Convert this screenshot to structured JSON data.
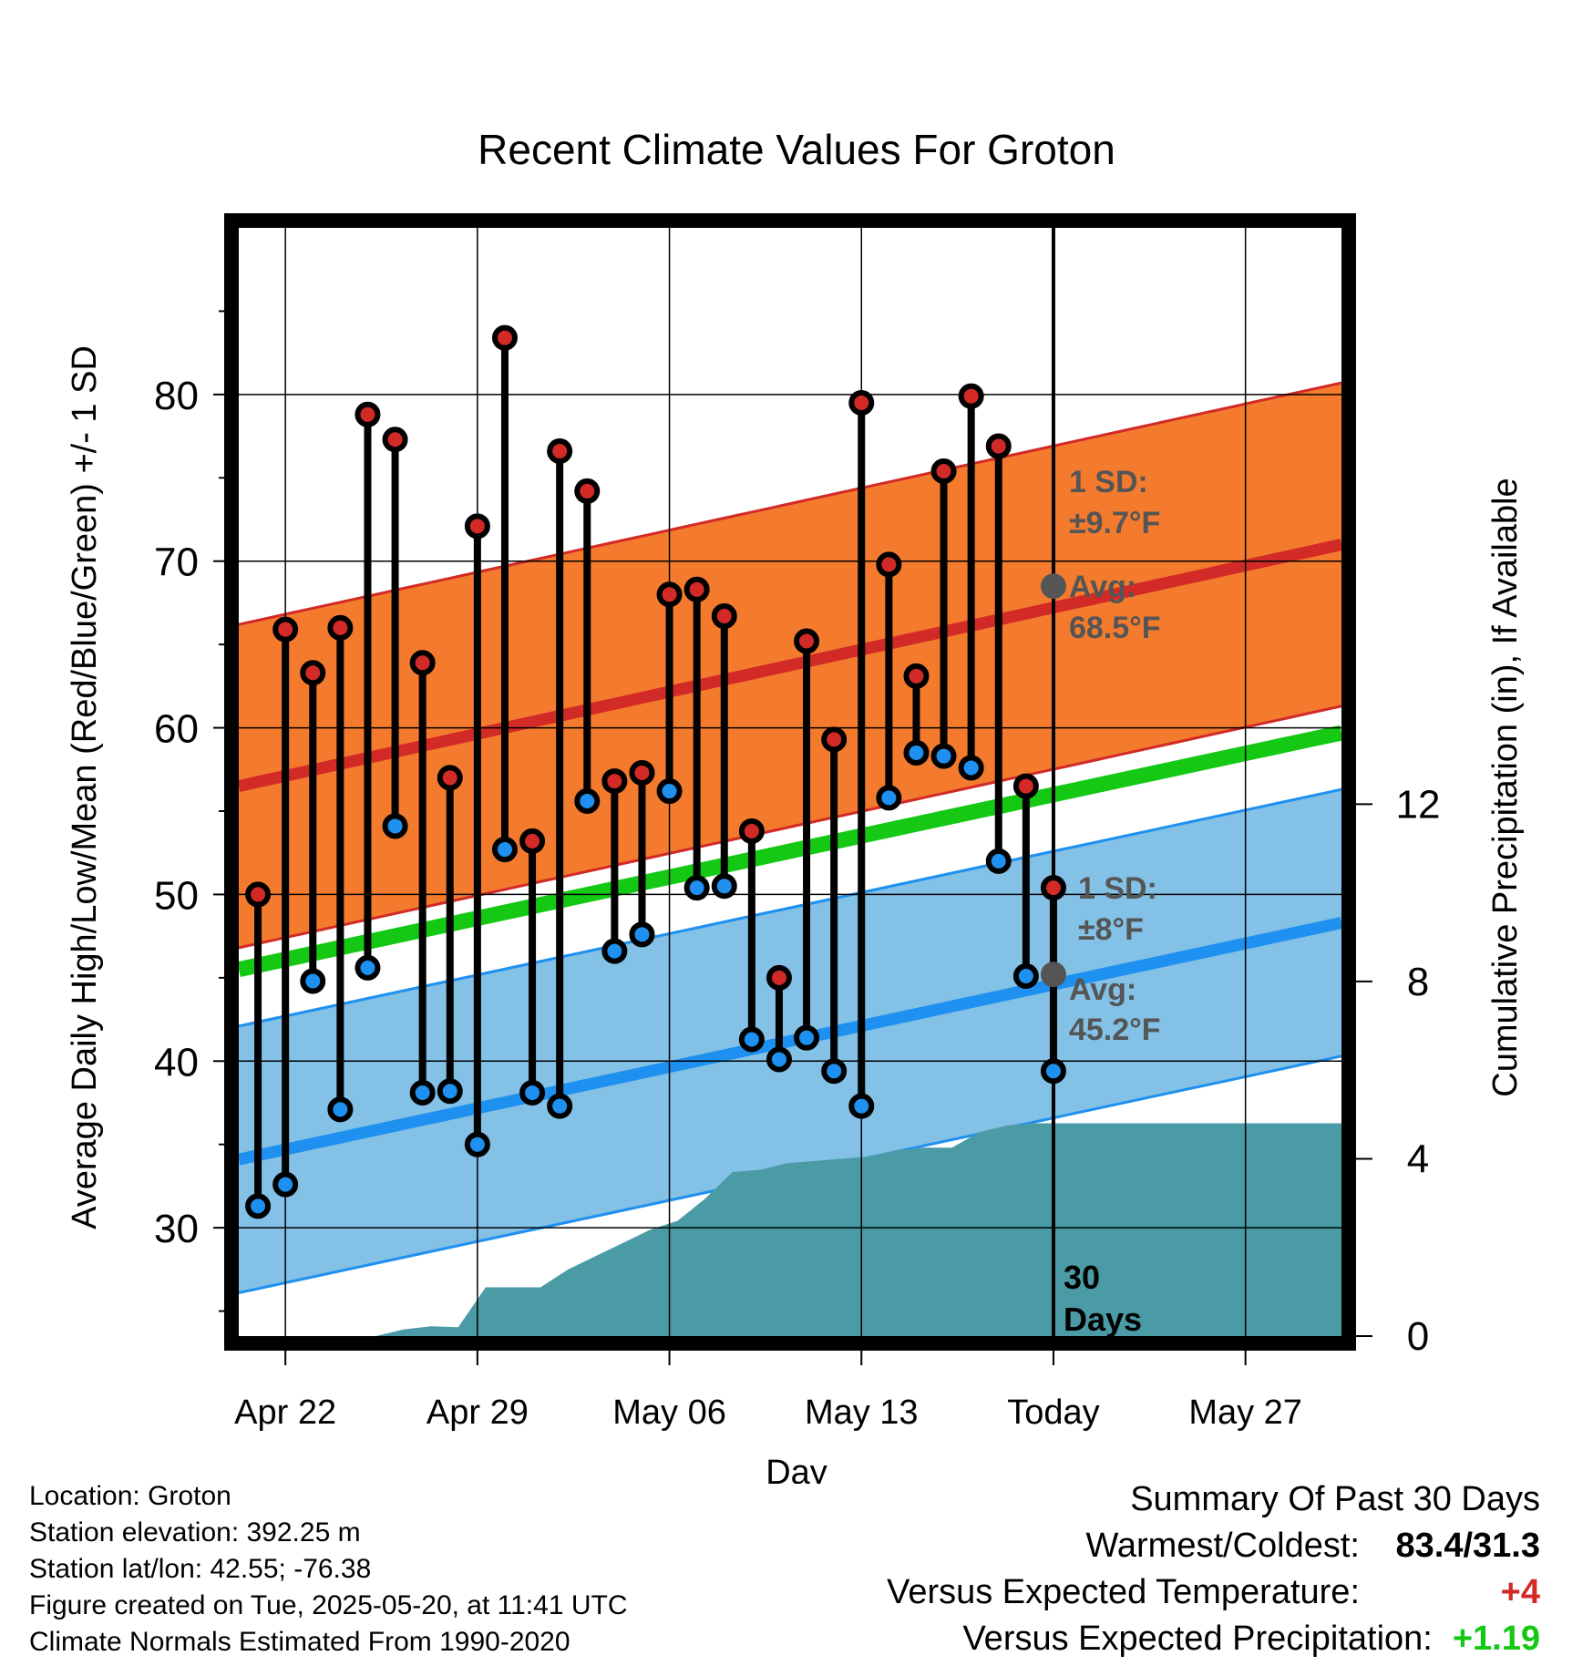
{
  "chart_data": {
    "type": "line",
    "title": "Recent Climate Values For Groton",
    "xlabel": "Day",
    "ylabel": "Average Daily High/Low/Mean (Red/Blue/Green) +/- 1 SD",
    "y2label": "Cumulative Precipitation (in), If Available",
    "x_tick_labels": [
      "Apr 22",
      "Apr 29",
      "May 06",
      "May 13",
      "Today",
      "May 27"
    ],
    "y_ticks": [
      30,
      40,
      50,
      60,
      70,
      80
    ],
    "y2_ticks": [
      0,
      4,
      8,
      12
    ],
    "ylim": [
      23.5,
      90
    ],
    "y2lim": [
      0,
      25
    ],
    "x_range_days": [
      -29.7,
      10.5
    ],
    "grid": true,
    "today_label": "30 Days",
    "daily_high": [
      50.0,
      65.9,
      63.3,
      66.0,
      78.8,
      77.3,
      63.9,
      57.0,
      72.1,
      83.4,
      53.2,
      76.6,
      74.2,
      56.8,
      57.3,
      68.0,
      68.3,
      66.7,
      53.8,
      45.0,
      65.2,
      59.3,
      79.5,
      69.8,
      63.1,
      75.4,
      79.9,
      76.9,
      56.5,
      50.4
    ],
    "daily_low": [
      31.3,
      32.6,
      44.8,
      37.1,
      45.6,
      54.1,
      38.1,
      38.2,
      35.0,
      52.7,
      38.1,
      37.3,
      55.6,
      46.6,
      47.6,
      56.2,
      50.4,
      50.5,
      41.3,
      40.1,
      41.4,
      39.4,
      37.3,
      55.8,
      58.5,
      58.3,
      57.6,
      52.0,
      45.1,
      39.4
    ],
    "normal_high": {
      "start": 56.5,
      "end": 71.0,
      "today": 68.5,
      "sd": 9.7
    },
    "normal_low": {
      "start": 34.1,
      "end": 48.3,
      "today": 45.2,
      "sd": 8
    },
    "normal_mean": {
      "start": 45.5,
      "end": 59.7
    },
    "precip_cumulative": [
      0,
      0,
      0,
      0,
      0,
      0,
      0.15,
      0.22,
      0.2,
      1.1,
      1.1,
      1.1,
      1.5,
      1.8,
      2.1,
      2.4,
      2.6,
      3.1,
      3.7,
      3.75,
      3.9,
      3.95,
      4.0,
      4.05,
      4.2,
      4.25,
      4.25,
      4.6,
      4.75,
      4.8,
      4.8
    ],
    "annotations": {
      "high_sd_label": "1 SD:",
      "high_sd_value": "±9.7°F",
      "high_avg_label": "Avg:",
      "high_avg_value": "68.5°F",
      "low_sd_label": "1 SD:",
      "low_sd_value": "±8°F",
      "low_avg_label": "Avg:",
      "low_avg_value": "45.2°F"
    },
    "colors": {
      "high_band": "#f47b2e",
      "high_line": "#d22a27",
      "low_band": "#83c1e6",
      "low_line": "#1e90ef",
      "mean_line": "#14c814",
      "precip": "#4a9ba5",
      "high_dot": "#d22a27",
      "low_dot": "#1e90ef",
      "annotation": "#555555"
    }
  },
  "info": {
    "location": "Location: Groton",
    "elevation": "Station elevation: 392.25 m",
    "latlon": "Station lat/lon: 42.55; -76.38",
    "created": "Figure created on Tue, 2025-05-20, at 11:41 UTC",
    "normals": "Climate Normals Estimated From 1990-2020"
  },
  "summary": {
    "heading": "Summary Of Past 30 Days",
    "warm_cold_label": "Warmest/Coldest:",
    "warm_cold_value": "83.4/31.3",
    "temp_label": "Versus Expected Temperature:",
    "temp_value": "+4",
    "temp_color": "#d22a27",
    "precip_label": "Versus Expected Precipitation:",
    "precip_value": "+1.19",
    "precip_color": "#14c814"
  }
}
